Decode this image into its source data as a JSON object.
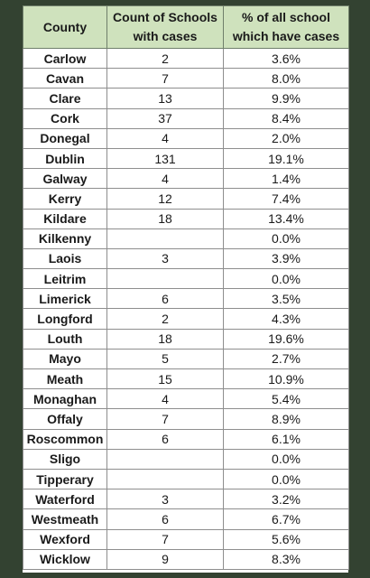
{
  "table": {
    "headers": {
      "county": "County",
      "count_line1": "Count of Schools",
      "count_line2": "with cases",
      "pct_line1": "% of all school",
      "pct_line2": "which have cases"
    },
    "rows": [
      {
        "county": "Carlow",
        "count": "2",
        "pct": "3.6%"
      },
      {
        "county": "Cavan",
        "count": "7",
        "pct": "8.0%"
      },
      {
        "county": "Clare",
        "count": "13",
        "pct": "9.9%"
      },
      {
        "county": "Cork",
        "count": "37",
        "pct": "8.4%"
      },
      {
        "county": "Donegal",
        "count": "4",
        "pct": "2.0%"
      },
      {
        "county": "Dublin",
        "count": "131",
        "pct": "19.1%"
      },
      {
        "county": "Galway",
        "count": "4",
        "pct": "1.4%"
      },
      {
        "county": "Kerry",
        "count": "12",
        "pct": "7.4%"
      },
      {
        "county": "Kildare",
        "count": "18",
        "pct": "13.4%"
      },
      {
        "county": "Kilkenny",
        "count": "",
        "pct": "0.0%"
      },
      {
        "county": "Laois",
        "count": "3",
        "pct": "3.9%"
      },
      {
        "county": "Leitrim",
        "count": "",
        "pct": "0.0%"
      },
      {
        "county": "Limerick",
        "count": "6",
        "pct": "3.5%"
      },
      {
        "county": "Longford",
        "count": "2",
        "pct": "4.3%"
      },
      {
        "county": "Louth",
        "count": "18",
        "pct": "19.6%"
      },
      {
        "county": "Mayo",
        "count": "5",
        "pct": "2.7%"
      },
      {
        "county": "Meath",
        "count": "15",
        "pct": "10.9%"
      },
      {
        "county": "Monaghan",
        "count": "4",
        "pct": "5.4%"
      },
      {
        "county": "Offaly",
        "count": "7",
        "pct": "8.9%"
      },
      {
        "county": "Roscommon",
        "count": "6",
        "pct": "6.1%"
      },
      {
        "county": "Sligo",
        "count": "",
        "pct": "0.0%"
      },
      {
        "county": "Tipperary",
        "count": "",
        "pct": "0.0%"
      },
      {
        "county": "Waterford",
        "count": "3",
        "pct": "3.2%"
      },
      {
        "county": "Westmeath",
        "count": "6",
        "pct": "6.7%"
      },
      {
        "county": "Wexford",
        "count": "7",
        "pct": "5.6%"
      },
      {
        "county": "Wicklow",
        "count": "9",
        "pct": "8.3%"
      }
    ]
  }
}
